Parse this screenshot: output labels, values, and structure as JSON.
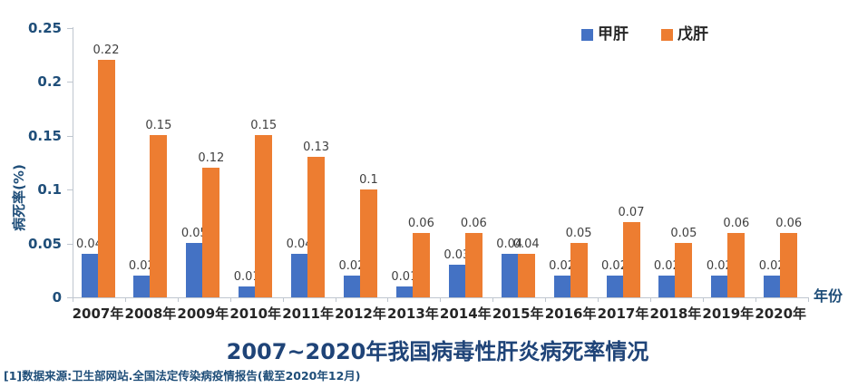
{
  "chart_data": {
    "type": "bar",
    "title": "2007~2020年我国病毒性肝炎病死率情况",
    "ylabel": "病死率(%)",
    "xlabel": "年份",
    "categories": [
      "2007年",
      "2008年",
      "2009年",
      "2010年",
      "2011年",
      "2012年",
      "2013年",
      "2014年",
      "2015年",
      "2016年",
      "2017年",
      "2018年",
      "2019年",
      "2020年"
    ],
    "series": [
      {
        "name": "甲肝",
        "color": "#4472C4",
        "values": [
          0.04,
          0.02,
          0.05,
          0.01,
          0.04,
          0.02,
          0.01,
          0.03,
          0.04,
          0.02,
          0.02,
          0.02,
          0.02,
          0.02
        ]
      },
      {
        "name": "戊肝",
        "color": "#ED7D31",
        "values": [
          0.22,
          0.15,
          0.12,
          0.15,
          0.13,
          0.1,
          0.06,
          0.06,
          0.04,
          0.05,
          0.07,
          0.05,
          0.06,
          0.06
        ]
      }
    ],
    "ylim": [
      0,
      0.25
    ],
    "yticks": [
      0,
      0.05,
      0.1,
      0.15,
      0.2,
      0.25
    ],
    "grid": false,
    "legend_position": "top-right",
    "value_labels": true
  },
  "footnote": "[1]数据来源:卫生部网站.全国法定传染病疫情报告(截至2020年12月)",
  "colors": {
    "axis_text": "#1F4E79",
    "title_text": "#1F4478",
    "category_text": "#262626",
    "data_label_text": "#404040",
    "axis_line": "#BFC6CF"
  }
}
